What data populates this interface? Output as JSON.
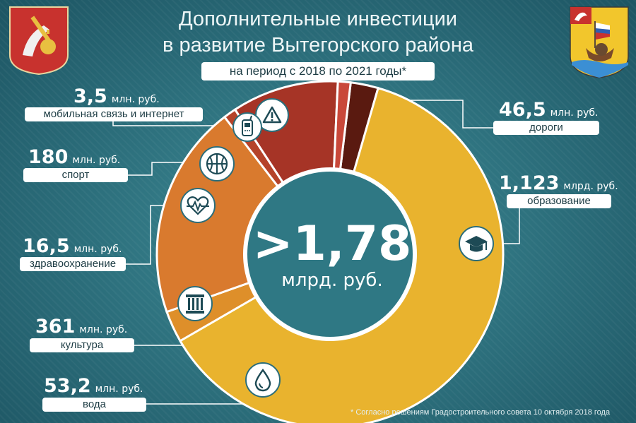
{
  "title": {
    "line1": "Дополнительные инвестиции",
    "line2": "в развитие Вытегорского района",
    "subtitle": "на период с 2018 по 2021 годы*"
  },
  "footnote": "* Согласно решениям Градостроительного совета 10 октября 2018 года",
  "colors": {
    "background": "#2b6d7a",
    "education": "#e9b32e",
    "culture": "#d97a2e",
    "water": "#de8f2a",
    "health": "#b5432a",
    "sport": "#a63426",
    "mobile": "#c9483a",
    "roads": "#5a1a10"
  },
  "chart_data": {
    "type": "donut",
    "total_label": ">1,78",
    "total_unit": "млрд. руб.",
    "unit": "млн. руб.",
    "categories": [
      "дороги",
      "образование",
      "вода",
      "культура",
      "здравоохранение",
      "спорт",
      "мобильная связь и интернет"
    ],
    "values": [
      46.5,
      1123,
      53.2,
      361,
      16.5,
      180,
      3.5
    ],
    "items": [
      {
        "key": "roads",
        "icon": "road-warning-icon",
        "value": "46,5",
        "unit": "млн. руб.",
        "label": "дороги"
      },
      {
        "key": "education",
        "icon": "graduation-cap-icon",
        "value": "1,123",
        "unit": "млрд. руб.",
        "label": "образование"
      },
      {
        "key": "water",
        "icon": "water-drop-icon",
        "value": "53,2",
        "unit": "млн. руб.",
        "label": "вода"
      },
      {
        "key": "culture",
        "icon": "column-icon",
        "value": "361",
        "unit": "млн. руб.",
        "label": "культура"
      },
      {
        "key": "health",
        "icon": "heart-pulse-icon",
        "value": "16,5",
        "unit": "млн. руб.",
        "label": "здравоохранение"
      },
      {
        "key": "sport",
        "icon": "basketball-icon",
        "value": "180",
        "unit": "млн. руб.",
        "label": "спорт"
      },
      {
        "key": "mobile",
        "icon": "mobile-phone-icon",
        "value": "3,5",
        "unit": "млн. руб.",
        "label": "мобильная связь и интернет"
      }
    ]
  }
}
